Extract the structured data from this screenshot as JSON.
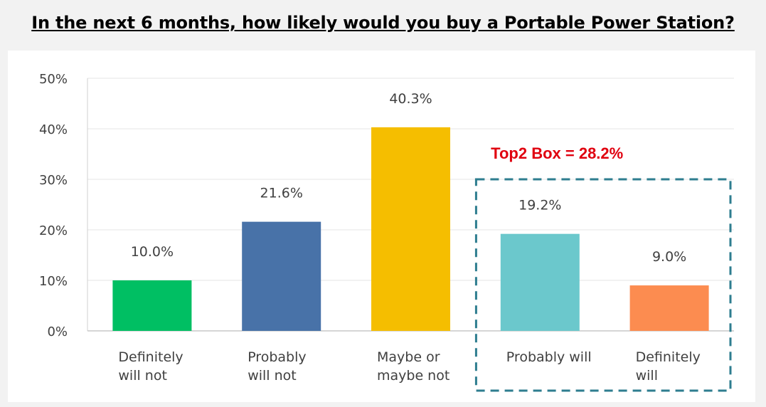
{
  "chart_data": {
    "type": "bar",
    "title": "In the next 6 months, how likely would you buy a Portable Power Station?",
    "categories": [
      [
        "Definitely",
        "will not"
      ],
      [
        "Probably",
        "will not"
      ],
      [
        "Maybe or",
        "maybe not"
      ],
      [
        "Probably will"
      ],
      [
        "Definitely",
        "will"
      ]
    ],
    "values": [
      10.0,
      21.6,
      40.3,
      19.2,
      9.0
    ],
    "value_labels": [
      "10.0%",
      "21.6%",
      "40.3%",
      "19.2%",
      "9.0%"
    ],
    "colors": [
      "#00bf63",
      "#4872a8",
      "#f5be00",
      "#6bc8cc",
      "#fc8c50"
    ],
    "ylim": [
      0,
      50
    ],
    "yticks": [
      {
        "value": 0,
        "label": "0%"
      },
      {
        "value": 10,
        "label": "10%"
      },
      {
        "value": 20,
        "label": "20%"
      },
      {
        "value": 30,
        "label": "30%"
      },
      {
        "value": 40,
        "label": "40%"
      },
      {
        "value": 50,
        "label": "50%"
      }
    ],
    "grid": true,
    "annotation": {
      "text": "Top2 Box = 28.2%",
      "color": "#e0000f",
      "box_color": "#2e7d8f",
      "highlight_categories": [
        3,
        4
      ]
    }
  }
}
